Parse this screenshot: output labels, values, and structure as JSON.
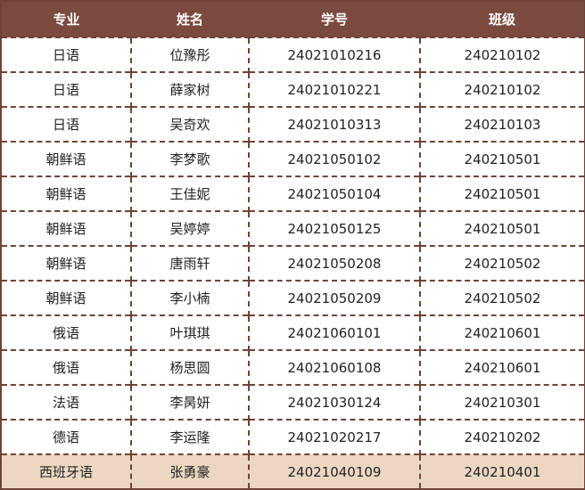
{
  "colors": {
    "header_bg": "#7b4a3e",
    "border": "#6e4336",
    "highlight_row_bg": "#ecd8c2"
  },
  "headers": [
    "专业",
    "姓名",
    "学号",
    "班级"
  ],
  "rows": [
    [
      "日语",
      "位豫彤",
      "24021010216",
      "240210102"
    ],
    [
      "日语",
      "薛家树",
      "24021010221",
      "240210102"
    ],
    [
      "日语",
      "吴奇欢",
      "24021010313",
      "240210103"
    ],
    [
      "朝鲜语",
      "李梦歌",
      "24021050102",
      "240210501"
    ],
    [
      "朝鲜语",
      "王佳妮",
      "24021050104",
      "240210501"
    ],
    [
      "朝鲜语",
      "吴婷婷",
      "24021050125",
      "240210501"
    ],
    [
      "朝鲜语",
      "唐雨轩",
      "24021050208",
      "240210502"
    ],
    [
      "朝鲜语",
      "李小楠",
      "24021050209",
      "240210502"
    ],
    [
      "俄语",
      "叶琪琪",
      "24021060101",
      "240210601"
    ],
    [
      "俄语",
      "杨思圆",
      "24021060108",
      "240210601"
    ],
    [
      "法语",
      "李昺妍",
      "24021030124",
      "240210301"
    ],
    [
      "德语",
      "李运隆",
      "24021020217",
      "240210202"
    ],
    [
      "西班牙语",
      "张勇豪",
      "24021040109",
      "240210401"
    ]
  ],
  "highlighted_row_index": 12
}
